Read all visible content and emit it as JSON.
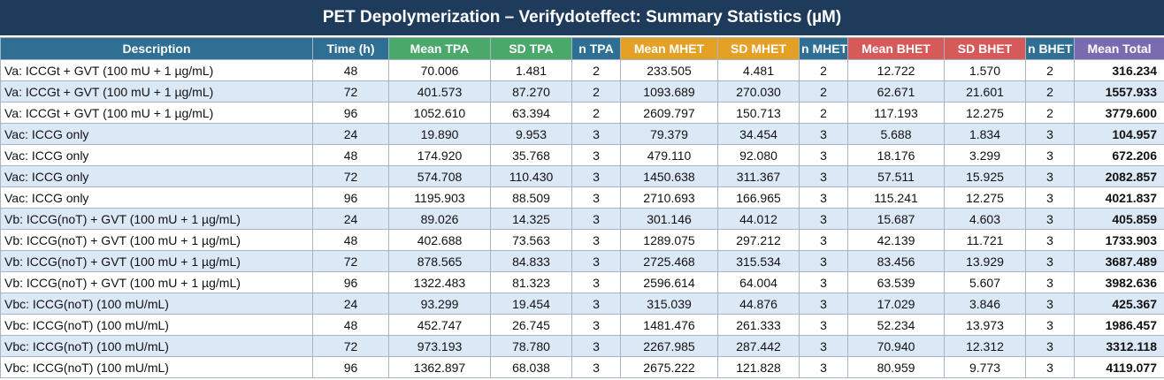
{
  "title": "PET Depolymerization – Verifydoteffect: Summary Statistics (µM)",
  "colors": {
    "title_bg": "#1f3b5c",
    "header_desc": "#2f6f93",
    "header_tpa": "#4aa86a",
    "header_mhet": "#e5a126",
    "header_bhet": "#d65a5a",
    "header_total": "#7a6bb0",
    "row_alt": "#dbe8f5"
  },
  "columns": [
    {
      "key": "desc",
      "label": "Description",
      "color": "#2f6f93"
    },
    {
      "key": "time",
      "label": "Time (h)",
      "color": "#2f6f93"
    },
    {
      "key": "mean_tpa",
      "label": "Mean TPA",
      "color": "#4aa86a"
    },
    {
      "key": "sd_tpa",
      "label": "SD TPA",
      "color": "#4aa86a"
    },
    {
      "key": "n_tpa",
      "label": "n TPA",
      "color": "#2f6f93"
    },
    {
      "key": "mean_mhet",
      "label": "Mean MHET",
      "color": "#e5a126"
    },
    {
      "key": "sd_mhet",
      "label": "SD MHET",
      "color": "#e5a126"
    },
    {
      "key": "n_mhet",
      "label": "n MHET",
      "color": "#2f6f93"
    },
    {
      "key": "mean_bhet",
      "label": "Mean BHET",
      "color": "#d65a5a"
    },
    {
      "key": "sd_bhet",
      "label": "SD BHET",
      "color": "#d65a5a"
    },
    {
      "key": "n_bhet",
      "label": "n BHET",
      "color": "#2f6f93"
    },
    {
      "key": "mean_total",
      "label": "Mean Total",
      "color": "#7a6bb0"
    }
  ],
  "rows": [
    [
      "Va: ICCGt + GVT (100 mU + 1 µg/mL)",
      "48",
      "70.006",
      "1.481",
      "2",
      "233.505",
      "4.481",
      "2",
      "12.722",
      "1.570",
      "2",
      "316.234"
    ],
    [
      "Va: ICCGt + GVT (100 mU + 1 µg/mL)",
      "72",
      "401.573",
      "87.270",
      "2",
      "1093.689",
      "270.030",
      "2",
      "62.671",
      "21.601",
      "2",
      "1557.933"
    ],
    [
      "Va: ICCGt + GVT (100 mU + 1 µg/mL)",
      "96",
      "1052.610",
      "63.394",
      "2",
      "2609.797",
      "150.713",
      "2",
      "117.193",
      "12.275",
      "2",
      "3779.600"
    ],
    [
      "Vac: ICCG only",
      "24",
      "19.890",
      "9.953",
      "3",
      "79.379",
      "34.454",
      "3",
      "5.688",
      "1.834",
      "3",
      "104.957"
    ],
    [
      "Vac: ICCG only",
      "48",
      "174.920",
      "35.768",
      "3",
      "479.110",
      "92.080",
      "3",
      "18.176",
      "3.299",
      "3",
      "672.206"
    ],
    [
      "Vac: ICCG only",
      "72",
      "574.708",
      "110.430",
      "3",
      "1450.638",
      "311.367",
      "3",
      "57.511",
      "15.925",
      "3",
      "2082.857"
    ],
    [
      "Vac: ICCG only",
      "96",
      "1195.903",
      "88.509",
      "3",
      "2710.693",
      "166.965",
      "3",
      "115.241",
      "12.275",
      "3",
      "4021.837"
    ],
    [
      "Vb: ICCG(noT) + GVT (100 mU + 1 µg/mL)",
      "24",
      "89.026",
      "14.325",
      "3",
      "301.146",
      "44.012",
      "3",
      "15.687",
      "4.603",
      "3",
      "405.859"
    ],
    [
      "Vb: ICCG(noT) + GVT (100 mU + 1 µg/mL)",
      "48",
      "402.688",
      "73.563",
      "3",
      "1289.075",
      "297.212",
      "3",
      "42.139",
      "11.721",
      "3",
      "1733.903"
    ],
    [
      "Vb: ICCG(noT) + GVT (100 mU + 1 µg/mL)",
      "72",
      "878.565",
      "84.833",
      "3",
      "2725.468",
      "315.534",
      "3",
      "83.456",
      "13.929",
      "3",
      "3687.489"
    ],
    [
      "Vb: ICCG(noT) + GVT (100 mU + 1 µg/mL)",
      "96",
      "1322.483",
      "81.323",
      "3",
      "2596.614",
      "64.004",
      "3",
      "63.539",
      "5.607",
      "3",
      "3982.636"
    ],
    [
      "Vbc: ICCG(noT) (100 mU/mL)",
      "24",
      "93.299",
      "19.454",
      "3",
      "315.039",
      "44.876",
      "3",
      "17.029",
      "3.846",
      "3",
      "425.367"
    ],
    [
      "Vbc: ICCG(noT) (100 mU/mL)",
      "48",
      "452.747",
      "26.745",
      "3",
      "1481.476",
      "261.333",
      "3",
      "52.234",
      "13.973",
      "3",
      "1986.457"
    ],
    [
      "Vbc: ICCG(noT) (100 mU/mL)",
      "72",
      "973.193",
      "78.780",
      "3",
      "2267.985",
      "287.442",
      "3",
      "70.940",
      "12.312",
      "3",
      "3312.118"
    ],
    [
      "Vbc: ICCG(noT) (100 mU/mL)",
      "96",
      "1362.897",
      "68.038",
      "3",
      "2675.222",
      "121.828",
      "3",
      "80.959",
      "9.773",
      "3",
      "4119.077"
    ]
  ]
}
